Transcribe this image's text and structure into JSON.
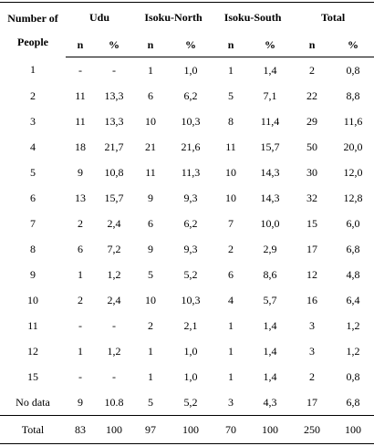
{
  "table": {
    "header": {
      "first": "Number of People",
      "groups": [
        "Udu",
        "Isoku-North",
        "Isoku-South",
        "Total"
      ],
      "sub": [
        "n",
        "%",
        "n",
        "%",
        "n",
        "%",
        "n",
        "%"
      ]
    },
    "rows": [
      [
        "1",
        "-",
        "-",
        "1",
        "1,0",
        "1",
        "1,4",
        "2",
        "0,8"
      ],
      [
        "2",
        "11",
        "13,3",
        "6",
        "6,2",
        "5",
        "7,1",
        "22",
        "8,8"
      ],
      [
        "3",
        "11",
        "13,3",
        "10",
        "10,3",
        "8",
        "11,4",
        "29",
        "11,6"
      ],
      [
        "4",
        "18",
        "21,7",
        "21",
        "21,6",
        "11",
        "15,7",
        "50",
        "20,0"
      ],
      [
        "5",
        "9",
        "10,8",
        "11",
        "11,3",
        "10",
        "14,3",
        "30",
        "12,0"
      ],
      [
        "6",
        "13",
        "15,7",
        "9",
        "9,3",
        "10",
        "14,3",
        "32",
        "12,8"
      ],
      [
        "7",
        "2",
        "2,4",
        "6",
        "6,2",
        "7",
        "10,0",
        "15",
        "6,0"
      ],
      [
        "8",
        "6",
        "7,2",
        "9",
        "9,3",
        "2",
        "2,9",
        "17",
        "6,8"
      ],
      [
        "9",
        "1",
        "1,2",
        "5",
        "5,2",
        "6",
        "8,6",
        "12",
        "4,8"
      ],
      [
        "10",
        "2",
        "2,4",
        "10",
        "10,3",
        "4",
        "5,7",
        "16",
        "6,4"
      ],
      [
        "11",
        "-",
        "-",
        "2",
        "2,1",
        "1",
        "1,4",
        "3",
        "1,2"
      ],
      [
        "12",
        "1",
        "1,2",
        "1",
        "1,0",
        "1",
        "1,4",
        "3",
        "1,2"
      ],
      [
        "15",
        "-",
        "-",
        "1",
        "1,0",
        "1",
        "1,4",
        "2",
        "0,8"
      ],
      [
        "No data",
        "9",
        "10.8",
        "5",
        "5,2",
        "3",
        "4,3",
        "17",
        "6,8"
      ]
    ],
    "total": [
      "Total",
      "83",
      "100",
      "97",
      "100",
      "70",
      "100",
      "250",
      "100"
    ]
  }
}
